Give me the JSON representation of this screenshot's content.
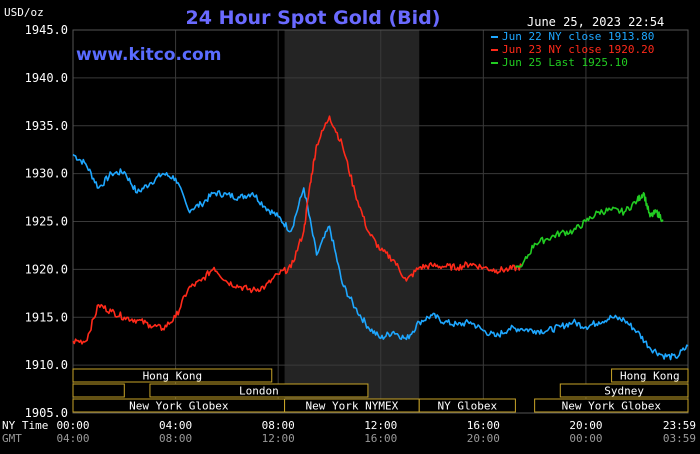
{
  "chart_data": {
    "type": "line",
    "title": "24 Hour Spot Gold (Bid)",
    "ylabel": "USD/oz",
    "date_label": "June 25, 2023 22:54",
    "source": "www.kitco.com",
    "ylim": [
      1905,
      1945
    ],
    "y_ticks": [
      "1945.0",
      "1940.0",
      "1935.0",
      "1930.0",
      "1925.0",
      "1920.0",
      "1915.0",
      "1910.0",
      "1905.0"
    ],
    "x_axis_rows": [
      {
        "label": "NY Time",
        "ticks": [
          "00:00",
          "04:00",
          "08:00",
          "12:00",
          "16:00",
          "20:00",
          "23:59"
        ]
      },
      {
        "label": "GMT",
        "ticks": [
          "04:00",
          "08:00",
          "12:00",
          "16:00",
          "20:00",
          "00:00",
          "03:59"
        ]
      }
    ],
    "legend": [
      {
        "name": "Jun 22 NY close 1913.80",
        "color": "#1ea7ff"
      },
      {
        "name": "Jun 23 NY close 1920.20",
        "color": "#ff2a1a"
      },
      {
        "name": "Jun 25 Last 1925.10",
        "color": "#22cc22"
      }
    ],
    "x_unit": "NY hour",
    "series": [
      {
        "name": "Jun 22 NY close 1913.80",
        "color": "#1ea7ff",
        "x": [
          0.0,
          0.5,
          1.0,
          1.5,
          2.0,
          2.5,
          3.0,
          3.5,
          4.0,
          4.5,
          5.0,
          5.5,
          6.0,
          6.5,
          7.0,
          7.5,
          8.0,
          8.5,
          9.0,
          9.5,
          10.0,
          10.5,
          11.0,
          11.5,
          12.0,
          12.5,
          13.0,
          13.5,
          14.0,
          14.5,
          15.0,
          15.5,
          16.0,
          16.5,
          17.0,
          17.5,
          18.0,
          18.5,
          19.0,
          19.5,
          20.0,
          20.5,
          21.0,
          21.5,
          22.0,
          22.5,
          23.0,
          23.5,
          23.98
        ],
        "y": [
          1932.0,
          1931.0,
          1928.5,
          1930.0,
          1930.2,
          1928.0,
          1929.0,
          1930.0,
          1929.5,
          1926.2,
          1926.8,
          1928.0,
          1927.8,
          1927.5,
          1928.0,
          1926.5,
          1925.5,
          1924.0,
          1928.5,
          1921.5,
          1924.5,
          1918.5,
          1916.0,
          1914.0,
          1912.8,
          1913.5,
          1912.7,
          1914.5,
          1915.2,
          1914.5,
          1914.2,
          1914.5,
          1913.6,
          1913.0,
          1913.8,
          1913.8,
          1913.6,
          1913.6,
          1914.0,
          1914.5,
          1914.0,
          1914.5,
          1915.0,
          1914.7,
          1913.5,
          1911.8,
          1911.0,
          1910.8,
          1912.0
        ]
      },
      {
        "name": "Jun 23 NY close 1920.20",
        "color": "#ff2a1a",
        "x": [
          0.0,
          0.5,
          1.0,
          1.5,
          2.0,
          2.5,
          3.0,
          3.5,
          4.0,
          4.5,
          5.0,
          5.5,
          6.0,
          6.5,
          7.0,
          7.5,
          8.0,
          8.5,
          9.0,
          9.25,
          9.5,
          10.0,
          10.5,
          11.0,
          11.5,
          12.0,
          12.5,
          13.0,
          13.5,
          14.0,
          14.5,
          15.0,
          15.5,
          16.0,
          16.5,
          17.0,
          17.5
        ],
        "y": [
          1912.5,
          1912.5,
          1916.3,
          1915.6,
          1915.0,
          1914.7,
          1914.2,
          1913.8,
          1915.0,
          1918.0,
          1918.8,
          1920.2,
          1918.7,
          1918.2,
          1917.8,
          1918.2,
          1919.5,
          1920.2,
          1924.0,
          1929.0,
          1933.0,
          1936.0,
          1933.0,
          1928.0,
          1924.0,
          1922.0,
          1921.0,
          1918.8,
          1920.2,
          1920.4,
          1920.3,
          1920.2,
          1920.6,
          1920.2,
          1919.9,
          1920.0,
          1920.3
        ]
      },
      {
        "name": "Jun 25 Last 1925.10",
        "color": "#22cc22",
        "x": [
          17.5,
          18.0,
          18.5,
          19.0,
          19.5,
          20.0,
          20.5,
          21.0,
          21.5,
          22.0,
          22.25,
          22.5,
          22.75,
          23.0
        ],
        "y": [
          1920.3,
          1922.7,
          1923.2,
          1923.8,
          1924.0,
          1925.0,
          1926.0,
          1926.2,
          1926.0,
          1927.2,
          1928.0,
          1925.5,
          1926.0,
          1925.2
        ]
      }
    ],
    "market_sessions": [
      {
        "name": "Hong Kong",
        "start": 0.0,
        "end": 7.75,
        "row": 0
      },
      {
        "name": "",
        "start": 0.0,
        "end": 2.0,
        "row": 1
      },
      {
        "name": "London",
        "start": 3.0,
        "end": 11.5,
        "row": 1
      },
      {
        "name": "New York Globex",
        "start": 0.0,
        "end": 8.25,
        "row": 2
      },
      {
        "name": "New York NYMEX",
        "start": 8.25,
        "end": 13.5,
        "row": 2
      },
      {
        "name": "NY Globex",
        "start": 13.5,
        "end": 17.25,
        "row": 2
      },
      {
        "name": "Hong Kong",
        "start": 21.0,
        "end": 23.98,
        "row": 0
      },
      {
        "name": "Sydney",
        "start": 19.0,
        "end": 23.98,
        "row": 1
      },
      {
        "name": "New York Globex",
        "start": 18.0,
        "end": 23.98,
        "row": 2
      }
    ],
    "shaded_region": {
      "start": 8.25,
      "end": 13.5
    },
    "grid": true
  }
}
